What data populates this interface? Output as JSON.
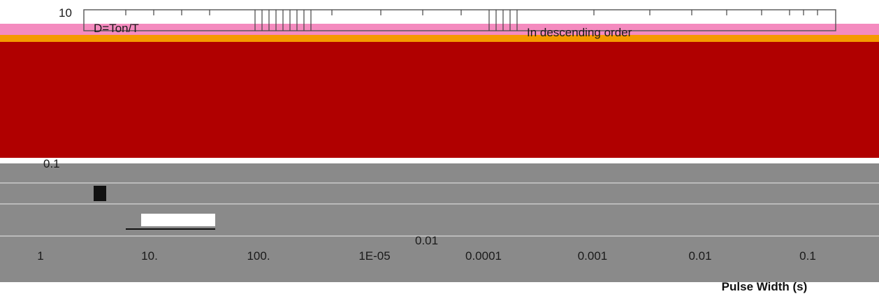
{
  "chart_data": {
    "type": "line",
    "title": "",
    "xlabel": "Pulse Width (s)",
    "ylabel": "",
    "x_scale": "log",
    "y_scale": "log",
    "x_ticks": [
      "1",
      "10.",
      "100.",
      "1E-05",
      "0.0001",
      "0.001",
      "0.01",
      "0.1"
    ],
    "y_ticks": [
      "10",
      "0.1",
      "0.01"
    ],
    "annotations": [
      "D=Ton/T",
      "In descending order"
    ],
    "colors": {
      "band_pink": "#f48bbf",
      "band_orange": "#f59a00",
      "block_red": "#b00000",
      "block_gray": "#8a8a8a",
      "stripe_white": "#ffffff"
    }
  }
}
